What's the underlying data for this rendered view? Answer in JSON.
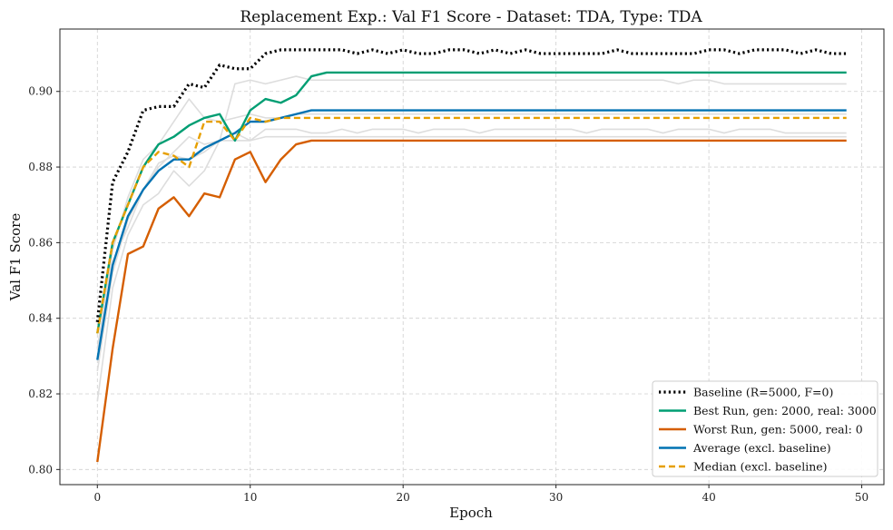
{
  "chart_data": {
    "type": "line",
    "title": "Replacement Exp.: Val F1 Score - Dataset: TDA, Type: TDA",
    "xlabel": "Epoch",
    "ylabel": "Val F1 Score",
    "xlim": [
      -2.45,
      51.45
    ],
    "ylim": [
      0.796,
      0.9165
    ],
    "xticks": [
      0,
      10,
      20,
      30,
      40,
      50
    ],
    "yticks": [
      0.8,
      0.82,
      0.84,
      0.86,
      0.88,
      0.9
    ],
    "xtick_labels": [
      "0",
      "10",
      "20",
      "30",
      "40",
      "50"
    ],
    "ytick_labels": [
      "0.80",
      "0.82",
      "0.84",
      "0.86",
      "0.88",
      "0.90"
    ],
    "grid": true,
    "legend_position": "lower-right",
    "background_series_color": "#dddddd",
    "background_series": [
      [
        0.832,
        0.858,
        0.872,
        0.882,
        0.886,
        0.892,
        0.898,
        0.893,
        0.892,
        0.893,
        0.894,
        0.893,
        0.893,
        0.894,
        0.894,
        0.894,
        0.894,
        0.894,
        0.894,
        0.894,
        0.894,
        0.894,
        0.894,
        0.894,
        0.894,
        0.894,
        0.894,
        0.894,
        0.894,
        0.894,
        0.894,
        0.894,
        0.894,
        0.894,
        0.894,
        0.894,
        0.894,
        0.894,
        0.894,
        0.894,
        0.894,
        0.894,
        0.894,
        0.894,
        0.894,
        0.894,
        0.894,
        0.894,
        0.894,
        0.894
      ],
      [
        0.818,
        0.848,
        0.862,
        0.87,
        0.873,
        0.879,
        0.875,
        0.879,
        0.887,
        0.902,
        0.903,
        0.902,
        0.903,
        0.904,
        0.903,
        0.903,
        0.903,
        0.903,
        0.903,
        0.903,
        0.903,
        0.903,
        0.903,
        0.903,
        0.903,
        0.903,
        0.903,
        0.903,
        0.903,
        0.903,
        0.903,
        0.903,
        0.903,
        0.903,
        0.903,
        0.903,
        0.903,
        0.903,
        0.902,
        0.903,
        0.903,
        0.902,
        0.902,
        0.902,
        0.902,
        0.902,
        0.902,
        0.902,
        0.902,
        0.902
      ],
      [
        0.836,
        0.855,
        0.864,
        0.874,
        0.88,
        0.884,
        0.888,
        0.886,
        0.887,
        0.889,
        0.887,
        0.89,
        0.89,
        0.89,
        0.889,
        0.889,
        0.89,
        0.889,
        0.89,
        0.89,
        0.89,
        0.889,
        0.89,
        0.89,
        0.89,
        0.889,
        0.89,
        0.89,
        0.89,
        0.89,
        0.89,
        0.89,
        0.889,
        0.89,
        0.89,
        0.89,
        0.89,
        0.889,
        0.89,
        0.89,
        0.89,
        0.889,
        0.89,
        0.89,
        0.89,
        0.889,
        0.889,
        0.889,
        0.889,
        0.889
      ],
      [
        0.826,
        0.852,
        0.866,
        0.874,
        0.881,
        0.883,
        0.882,
        0.884,
        0.887,
        0.887,
        0.887,
        0.888,
        0.888,
        0.888,
        0.888,
        0.888,
        0.888,
        0.888,
        0.888,
        0.888,
        0.888,
        0.888,
        0.888,
        0.888,
        0.888,
        0.888,
        0.888,
        0.888,
        0.888,
        0.888,
        0.888,
        0.888,
        0.888,
        0.888,
        0.888,
        0.888,
        0.888,
        0.888,
        0.888,
        0.888,
        0.888,
        0.888,
        0.888,
        0.888,
        0.888,
        0.888,
        0.888,
        0.888,
        0.888,
        0.888
      ]
    ],
    "series": [
      {
        "name": "Baseline (R=5000, F=0)",
        "color": "#000000",
        "style": "dotted",
        "values": [
          0.839,
          0.876,
          0.884,
          0.895,
          0.896,
          0.896,
          0.902,
          0.901,
          0.907,
          0.906,
          0.906,
          0.91,
          0.911,
          0.911,
          0.911,
          0.911,
          0.911,
          0.91,
          0.911,
          0.91,
          0.911,
          0.91,
          0.91,
          0.911,
          0.911,
          0.91,
          0.911,
          0.91,
          0.911,
          0.91,
          0.91,
          0.91,
          0.91,
          0.91,
          0.911,
          0.91,
          0.91,
          0.91,
          0.91,
          0.91,
          0.911,
          0.911,
          0.91,
          0.911,
          0.911,
          0.911,
          0.91,
          0.911,
          0.91,
          0.91
        ]
      },
      {
        "name": "Best Run, gen: 2000, real: 3000",
        "color": "#009e73",
        "style": "solid",
        "values": [
          0.836,
          0.86,
          0.87,
          0.88,
          0.886,
          0.888,
          0.891,
          0.893,
          0.894,
          0.887,
          0.895,
          0.898,
          0.897,
          0.899,
          0.904,
          0.905,
          0.905,
          0.905,
          0.905,
          0.905,
          0.905,
          0.905,
          0.905,
          0.905,
          0.905,
          0.905,
          0.905,
          0.905,
          0.905,
          0.905,
          0.905,
          0.905,
          0.905,
          0.905,
          0.905,
          0.905,
          0.905,
          0.905,
          0.905,
          0.905,
          0.905,
          0.905,
          0.905,
          0.905,
          0.905,
          0.905,
          0.905,
          0.905,
          0.905,
          0.905
        ]
      },
      {
        "name": "Worst Run, gen: 5000, real: 0",
        "color": "#d55e00",
        "style": "solid",
        "values": [
          0.802,
          0.832,
          0.857,
          0.859,
          0.869,
          0.872,
          0.867,
          0.873,
          0.872,
          0.882,
          0.884,
          0.876,
          0.882,
          0.886,
          0.887,
          0.887,
          0.887,
          0.887,
          0.887,
          0.887,
          0.887,
          0.887,
          0.887,
          0.887,
          0.887,
          0.887,
          0.887,
          0.887,
          0.887,
          0.887,
          0.887,
          0.887,
          0.887,
          0.887,
          0.887,
          0.887,
          0.887,
          0.887,
          0.887,
          0.887,
          0.887,
          0.887,
          0.887,
          0.887,
          0.887,
          0.887,
          0.887,
          0.887,
          0.887,
          0.887
        ]
      },
      {
        "name": "Average (excl. baseline)",
        "color": "#0072b2",
        "style": "solid",
        "values": [
          0.829,
          0.854,
          0.867,
          0.874,
          0.879,
          0.882,
          0.882,
          0.885,
          0.887,
          0.889,
          0.892,
          0.892,
          0.893,
          0.894,
          0.895,
          0.895,
          0.895,
          0.895,
          0.895,
          0.895,
          0.895,
          0.895,
          0.895,
          0.895,
          0.895,
          0.895,
          0.895,
          0.895,
          0.895,
          0.895,
          0.895,
          0.895,
          0.895,
          0.895,
          0.895,
          0.895,
          0.895,
          0.895,
          0.895,
          0.895,
          0.895,
          0.895,
          0.895,
          0.895,
          0.895,
          0.895,
          0.895,
          0.895,
          0.895,
          0.895
        ]
      },
      {
        "name": "Median (excl. baseline)",
        "color": "#e69f00",
        "style": "dashed",
        "values": [
          0.836,
          0.86,
          0.87,
          0.88,
          0.884,
          0.883,
          0.88,
          0.892,
          0.892,
          0.887,
          0.893,
          0.892,
          0.893,
          0.893,
          0.893,
          0.893,
          0.893,
          0.893,
          0.893,
          0.893,
          0.893,
          0.893,
          0.893,
          0.893,
          0.893,
          0.893,
          0.893,
          0.893,
          0.893,
          0.893,
          0.893,
          0.893,
          0.893,
          0.893,
          0.893,
          0.893,
          0.893,
          0.893,
          0.893,
          0.893,
          0.893,
          0.893,
          0.893,
          0.893,
          0.893,
          0.893,
          0.893,
          0.893,
          0.893,
          0.893
        ]
      }
    ]
  }
}
